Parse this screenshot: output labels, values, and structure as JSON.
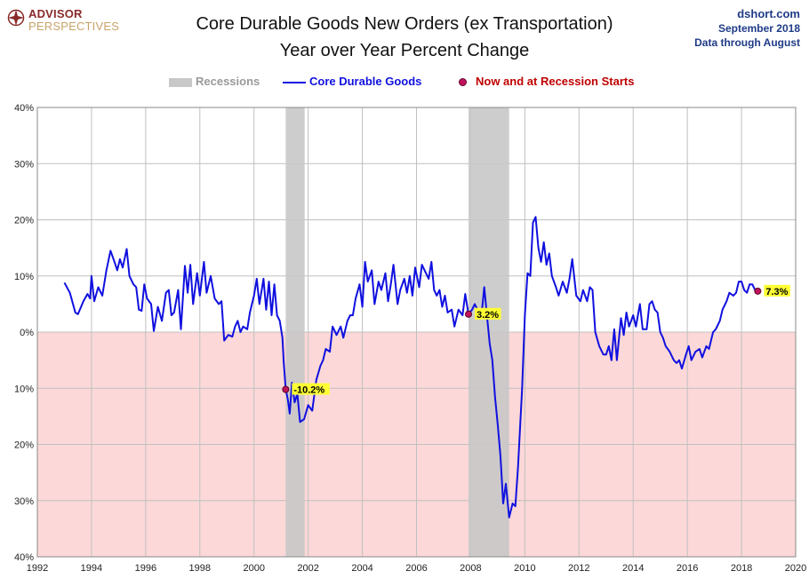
{
  "logo": {
    "line1": "ADVISOR",
    "line2": "PERSPECTIVES"
  },
  "header": {
    "title_line1": "Core Durable Goods New Orders (ex Transportation)",
    "title_line2": "Year over Year Percent Change"
  },
  "source": {
    "site": "dshort.com",
    "date": "September 2018",
    "through": "Data through August"
  },
  "legend": {
    "recessions": "Recessions",
    "series": "Core Durable Goods",
    "markers": "Now and at Recession Starts"
  },
  "colors": {
    "line": "#1010e0",
    "recession": "#c8c8c8",
    "negative_zone": "#fcd8d8",
    "marker": "#c0145a",
    "annotation_bg": "#ffff33",
    "legend_recessions_text": "#9a9a9a",
    "legend_series_text": "#1010e0",
    "legend_markers_text": "#c00000"
  },
  "chart_data": {
    "type": "line",
    "title": "Core Durable Goods New Orders (ex Transportation) Year over Year Percent Change",
    "xlabel": "",
    "ylabel": "",
    "xlim": [
      1992,
      2020
    ],
    "ylim": [
      -40,
      40
    ],
    "x_ticks": [
      1992,
      1994,
      1996,
      1998,
      2000,
      2002,
      2004,
      2006,
      2008,
      2010,
      2012,
      2014,
      2016,
      2018,
      2020
    ],
    "y_ticks": [
      40,
      30,
      20,
      10,
      0,
      -10,
      -20,
      -30,
      -40
    ],
    "y_tick_labels": [
      "40%",
      "30%",
      "20%",
      "10%",
      "0%",
      "10%",
      "20%",
      "30%",
      "40%"
    ],
    "grid": true,
    "recessions": [
      {
        "start": 2001.17,
        "end": 2001.87
      },
      {
        "start": 2007.92,
        "end": 2009.42
      }
    ],
    "series": [
      {
        "name": "Core Durable Goods",
        "points": [
          [
            1993.0,
            8.8
          ],
          [
            1993.2,
            7.0
          ],
          [
            1993.4,
            3.5
          ],
          [
            1993.5,
            3.2
          ],
          [
            1993.7,
            5.5
          ],
          [
            1993.85,
            6.8
          ],
          [
            1993.95,
            6.0
          ],
          [
            1994.0,
            10.0
          ],
          [
            1994.1,
            5.5
          ],
          [
            1994.25,
            8.0
          ],
          [
            1994.4,
            6.5
          ],
          [
            1994.55,
            11.0
          ],
          [
            1994.7,
            14.5
          ],
          [
            1994.85,
            12.5
          ],
          [
            1994.95,
            11.0
          ],
          [
            1995.05,
            13.0
          ],
          [
            1995.15,
            11.5
          ],
          [
            1995.3,
            14.8
          ],
          [
            1995.4,
            10.0
          ],
          [
            1995.55,
            8.5
          ],
          [
            1995.65,
            8.0
          ],
          [
            1995.75,
            4.0
          ],
          [
            1995.85,
            3.8
          ],
          [
            1995.95,
            8.5
          ],
          [
            1996.05,
            6.0
          ],
          [
            1996.2,
            5.0
          ],
          [
            1996.3,
            0.2
          ],
          [
            1996.45,
            4.5
          ],
          [
            1996.6,
            2.0
          ],
          [
            1996.75,
            7.0
          ],
          [
            1996.85,
            7.5
          ],
          [
            1996.95,
            3.0
          ],
          [
            1997.05,
            3.5
          ],
          [
            1997.2,
            7.5
          ],
          [
            1997.3,
            0.5
          ],
          [
            1997.45,
            11.8
          ],
          [
            1997.55,
            7.0
          ],
          [
            1997.65,
            12.0
          ],
          [
            1997.75,
            5.0
          ],
          [
            1997.9,
            10.5
          ],
          [
            1998.0,
            6.5
          ],
          [
            1998.15,
            12.5
          ],
          [
            1998.25,
            7.0
          ],
          [
            1998.4,
            10.0
          ],
          [
            1998.55,
            6.0
          ],
          [
            1998.7,
            5.0
          ],
          [
            1998.8,
            5.5
          ],
          [
            1998.9,
            -1.5
          ],
          [
            1999.05,
            -0.5
          ],
          [
            1999.2,
            -0.8
          ],
          [
            1999.3,
            1.0
          ],
          [
            1999.4,
            2.0
          ],
          [
            1999.5,
            0.0
          ],
          [
            1999.6,
            1.0
          ],
          [
            1999.75,
            0.5
          ],
          [
            1999.85,
            3.5
          ],
          [
            2000.0,
            6.5
          ],
          [
            2000.1,
            9.5
          ],
          [
            2000.2,
            5.0
          ],
          [
            2000.35,
            9.5
          ],
          [
            2000.45,
            4.0
          ],
          [
            2000.55,
            9.0
          ],
          [
            2000.65,
            3.0
          ],
          [
            2000.75,
            8.5
          ],
          [
            2000.85,
            3.0
          ],
          [
            2000.95,
            2.0
          ],
          [
            2001.05,
            -1.0
          ],
          [
            2001.1,
            -5.5
          ],
          [
            2001.17,
            -10.2
          ],
          [
            2001.25,
            -12.0
          ],
          [
            2001.32,
            -14.5
          ],
          [
            2001.4,
            -9.0
          ],
          [
            2001.5,
            -12.5
          ],
          [
            2001.6,
            -11.0
          ],
          [
            2001.7,
            -16.0
          ],
          [
            2001.85,
            -15.5
          ],
          [
            2002.0,
            -13.0
          ],
          [
            2002.15,
            -14.0
          ],
          [
            2002.3,
            -8.5
          ],
          [
            2002.45,
            -6.0
          ],
          [
            2002.55,
            -5.0
          ],
          [
            2002.65,
            -3.0
          ],
          [
            2002.8,
            -3.5
          ],
          [
            2002.9,
            1.0
          ],
          [
            2003.05,
            -0.5
          ],
          [
            2003.2,
            1.0
          ],
          [
            2003.3,
            -1.0
          ],
          [
            2003.45,
            2.0
          ],
          [
            2003.55,
            3.0
          ],
          [
            2003.65,
            3.0
          ],
          [
            2003.75,
            6.0
          ],
          [
            2003.9,
            8.5
          ],
          [
            2004.0,
            4.5
          ],
          [
            2004.1,
            12.5
          ],
          [
            2004.2,
            9.0
          ],
          [
            2004.35,
            11.0
          ],
          [
            2004.45,
            5.0
          ],
          [
            2004.6,
            9.0
          ],
          [
            2004.7,
            7.5
          ],
          [
            2004.85,
            10.5
          ],
          [
            2004.95,
            5.5
          ],
          [
            2005.05,
            8.5
          ],
          [
            2005.15,
            12.0
          ],
          [
            2005.3,
            5.0
          ],
          [
            2005.4,
            7.5
          ],
          [
            2005.55,
            9.5
          ],
          [
            2005.65,
            7.0
          ],
          [
            2005.75,
            10.0
          ],
          [
            2005.85,
            6.5
          ],
          [
            2005.95,
            11.5
          ],
          [
            2006.1,
            8.0
          ],
          [
            2006.2,
            12.0
          ],
          [
            2006.3,
            11.0
          ],
          [
            2006.45,
            9.5
          ],
          [
            2006.55,
            12.5
          ],
          [
            2006.65,
            7.5
          ],
          [
            2006.75,
            6.5
          ],
          [
            2006.85,
            7.5
          ],
          [
            2006.95,
            4.5
          ],
          [
            2007.05,
            6.5
          ],
          [
            2007.15,
            3.5
          ],
          [
            2007.3,
            4.0
          ],
          [
            2007.4,
            1.0
          ],
          [
            2007.55,
            4.0
          ],
          [
            2007.7,
            3.0
          ],
          [
            2007.8,
            6.8
          ],
          [
            2007.92,
            3.2
          ],
          [
            2008.05,
            4.0
          ],
          [
            2008.15,
            5.0
          ],
          [
            2008.3,
            3.5
          ],
          [
            2008.4,
            3.0
          ],
          [
            2008.5,
            8.0
          ],
          [
            2008.6,
            3.0
          ],
          [
            2008.7,
            -2.0
          ],
          [
            2008.8,
            -5.0
          ],
          [
            2008.9,
            -11.5
          ],
          [
            2009.0,
            -16.5
          ],
          [
            2009.1,
            -22.0
          ],
          [
            2009.2,
            -30.5
          ],
          [
            2009.3,
            -27.0
          ],
          [
            2009.42,
            -33.0
          ],
          [
            2009.55,
            -30.5
          ],
          [
            2009.65,
            -31.0
          ],
          [
            2009.75,
            -24.0
          ],
          [
            2009.9,
            -10.0
          ],
          [
            2010.0,
            3.0
          ],
          [
            2010.1,
            10.5
          ],
          [
            2010.2,
            10.0
          ],
          [
            2010.3,
            19.5
          ],
          [
            2010.4,
            20.5
          ],
          [
            2010.5,
            15.0
          ],
          [
            2010.6,
            12.5
          ],
          [
            2010.7,
            16.0
          ],
          [
            2010.8,
            12.0
          ],
          [
            2010.9,
            14.0
          ],
          [
            2011.0,
            10.0
          ],
          [
            2011.15,
            8.0
          ],
          [
            2011.25,
            6.5
          ],
          [
            2011.4,
            9.0
          ],
          [
            2011.55,
            7.0
          ],
          [
            2011.65,
            9.5
          ],
          [
            2011.75,
            13.0
          ],
          [
            2011.9,
            6.5
          ],
          [
            2012.05,
            5.5
          ],
          [
            2012.15,
            7.5
          ],
          [
            2012.3,
            5.5
          ],
          [
            2012.4,
            8.0
          ],
          [
            2012.5,
            7.5
          ],
          [
            2012.6,
            0.0
          ],
          [
            2012.75,
            -2.5
          ],
          [
            2012.9,
            -4.0
          ],
          [
            2013.0,
            -4.0
          ],
          [
            2013.1,
            -2.5
          ],
          [
            2013.2,
            -5.0
          ],
          [
            2013.3,
            0.5
          ],
          [
            2013.4,
            -5.0
          ],
          [
            2013.55,
            2.5
          ],
          [
            2013.65,
            -0.5
          ],
          [
            2013.75,
            3.5
          ],
          [
            2013.85,
            1.0
          ],
          [
            2014.0,
            3.0
          ],
          [
            2014.1,
            1.0
          ],
          [
            2014.25,
            5.0
          ],
          [
            2014.35,
            0.5
          ],
          [
            2014.5,
            0.5
          ],
          [
            2014.6,
            5.0
          ],
          [
            2014.7,
            5.5
          ],
          [
            2014.8,
            4.0
          ],
          [
            2014.9,
            3.5
          ],
          [
            2015.0,
            0.0
          ],
          [
            2015.1,
            -1.0
          ],
          [
            2015.2,
            -2.5
          ],
          [
            2015.35,
            -3.5
          ],
          [
            2015.5,
            -5.0
          ],
          [
            2015.6,
            -5.5
          ],
          [
            2015.7,
            -5.0
          ],
          [
            2015.8,
            -6.5
          ],
          [
            2015.95,
            -4.0
          ],
          [
            2016.05,
            -2.5
          ],
          [
            2016.15,
            -5.0
          ],
          [
            2016.3,
            -3.5
          ],
          [
            2016.45,
            -3.0
          ],
          [
            2016.55,
            -4.5
          ],
          [
            2016.7,
            -2.5
          ],
          [
            2016.8,
            -3.0
          ],
          [
            2016.95,
            0.0
          ],
          [
            2017.05,
            0.5
          ],
          [
            2017.2,
            2.0
          ],
          [
            2017.3,
            4.0
          ],
          [
            2017.45,
            5.5
          ],
          [
            2017.55,
            7.0
          ],
          [
            2017.7,
            6.5
          ],
          [
            2017.8,
            7.0
          ],
          [
            2017.9,
            9.0
          ],
          [
            2018.0,
            9.0
          ],
          [
            2018.1,
            7.5
          ],
          [
            2018.2,
            7.0
          ],
          [
            2018.3,
            8.5
          ],
          [
            2018.4,
            8.5
          ],
          [
            2018.5,
            7.5
          ],
          [
            2018.6,
            7.3
          ]
        ]
      }
    ],
    "markers": [
      {
        "x": 2001.17,
        "y": -10.2,
        "label": "-10.2%"
      },
      {
        "x": 2007.92,
        "y": 3.2,
        "label": "3.2%"
      },
      {
        "x": 2018.6,
        "y": 7.3,
        "label": "7.3%"
      }
    ]
  }
}
